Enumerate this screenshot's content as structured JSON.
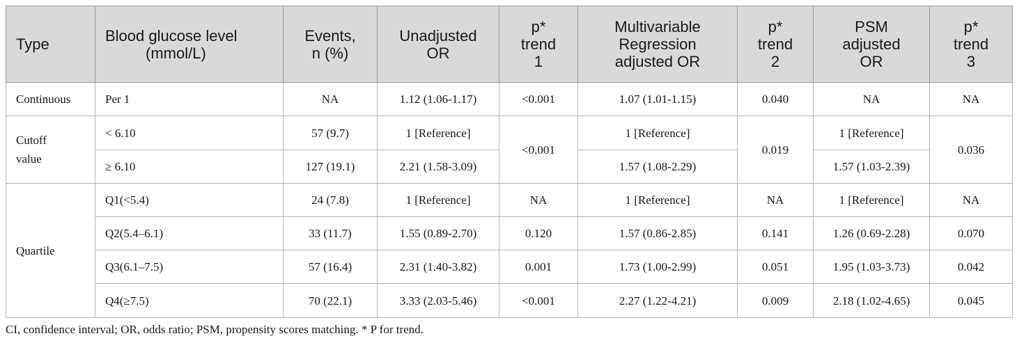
{
  "headers": {
    "type": "Type",
    "glucose": [
      "Blood glucose level",
      "(mmol/L)"
    ],
    "events": [
      "Events,",
      "n (%)"
    ],
    "unadjusted": [
      "Unadjusted",
      "OR"
    ],
    "ptrend1": [
      "p*",
      "trend",
      "1"
    ],
    "multivariable": [
      "Multivariable",
      "Regression",
      "adjusted OR"
    ],
    "ptrend2": [
      "p*",
      "trend",
      "2"
    ],
    "psm": [
      "PSM",
      "adjusted",
      "OR"
    ],
    "ptrend3": [
      "p*",
      "trend",
      "3"
    ]
  },
  "groups": {
    "continuous": "Continuous",
    "cutoff": [
      "Cutoff",
      "value"
    ],
    "quartile": "Quartile"
  },
  "rows": {
    "continuous": {
      "level": "Per 1",
      "events": "NA",
      "unadj": "1.12 (1.06-1.17)",
      "p1": "<0.001",
      "multi": "1.07 (1.01-1.15)",
      "p2": "0.040",
      "psm": "NA",
      "p3": "NA"
    },
    "cut_low": {
      "level": "< 6.10",
      "events": "57 (9.7)",
      "unadj": "1 [Reference]",
      "multi": "1 [Reference]",
      "psm": "1 [Reference]"
    },
    "cut_high": {
      "level": "≥ 6.10",
      "events": "127 (19.1)",
      "unadj": "2.21 (1.58-3.09)",
      "multi": "1.57 (1.08-2.29)",
      "psm": "1.57 (1.03-2.39)"
    },
    "cut_p": {
      "p1": "<0.001",
      "p2": "0.019",
      "p3": "0.036"
    },
    "q1": {
      "level": "Q1(<5.4)",
      "events": "24 (7.8)",
      "unadj": "1 [Reference]",
      "p1": "NA",
      "multi": "1 [Reference]",
      "p2": "NA",
      "psm": "1 [Reference]",
      "p3": "NA"
    },
    "q2": {
      "level": "Q2(5.4–6.1)",
      "events": "33 (11.7)",
      "unadj": "1.55 (0.89-2.70)",
      "p1": "0.120",
      "multi": "1.57 (0.86-2.85)",
      "p2": "0.141",
      "psm": "1.26 (0.69-2.28)",
      "p3": "0.070"
    },
    "q3": {
      "level": "Q3(6.1–7.5)",
      "events": "57 (16.4)",
      "unadj": "2.31 (1.40-3.82)",
      "p1": "0.001",
      "multi": "1.73 (1.00-2.99)",
      "p2": "0.051",
      "psm": "1.95 (1.03-3.73)",
      "p3": "0.042"
    },
    "q4": {
      "level": "Q4(≥7.5)",
      "events": "70 (22.1)",
      "unadj": "3.33 (2.03-5.46)",
      "p1": "<0.001",
      "multi": "2.27 (1.22-4.21)",
      "p2": "0.009",
      "psm": "2.18 (1.02-4.65)",
      "p3": "0.045"
    }
  },
  "footnote": "CI, confidence interval; OR, odds ratio; PSM, propensity scores matching. * P for trend."
}
